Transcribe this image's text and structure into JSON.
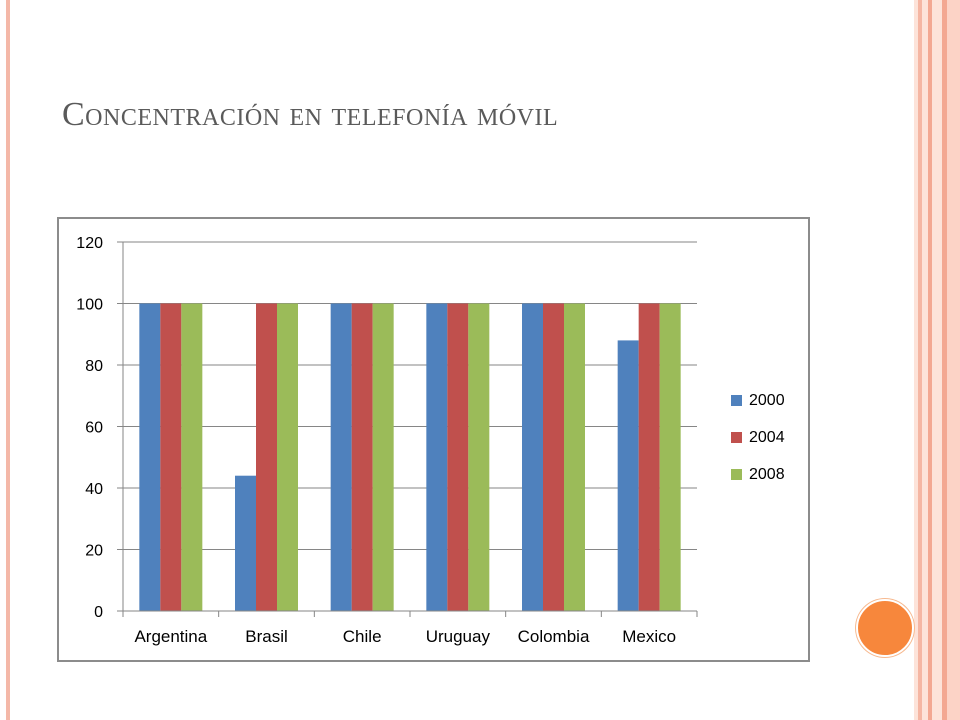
{
  "slide": {
    "title": "Concentración en telefonía móvil"
  },
  "colors": {
    "series_2000": "#4f81bd",
    "series_2004": "#c0504d",
    "series_2008": "#9bbb59",
    "gridline": "#868686",
    "frame_accent": "#f4b8a8",
    "orange_dot": "#f7873c"
  },
  "chart_data": {
    "type": "bar",
    "title": "",
    "xlabel": "",
    "ylabel": "",
    "categories": [
      "Argentina",
      "Brasil",
      "Chile",
      "Uruguay",
      "Colombia",
      "Mexico"
    ],
    "series": [
      {
        "name": "2000",
        "values": [
          100,
          44,
          100,
          100,
          100,
          88
        ]
      },
      {
        "name": "2004",
        "values": [
          100,
          100,
          100,
          100,
          100,
          100
        ]
      },
      {
        "name": "2008",
        "values": [
          100,
          100,
          100,
          100,
          100,
          100
        ]
      }
    ],
    "ylim": [
      0,
      120
    ],
    "yticks": [
      0,
      20,
      40,
      60,
      80,
      100,
      120
    ],
    "grid": true,
    "legend_position": "right"
  }
}
